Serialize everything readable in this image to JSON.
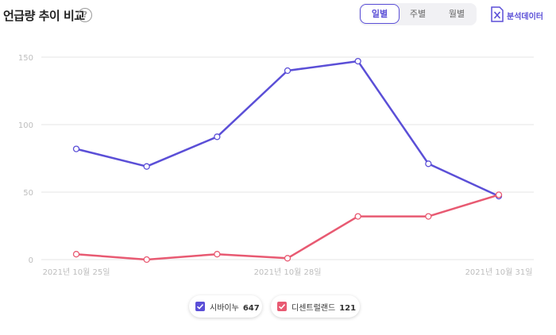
{
  "header": {
    "title": "언급량 추이 비교",
    "help_icon": "question-circle-icon",
    "period_options": [
      "일별",
      "주별",
      "월별"
    ],
    "period_selected": "일별",
    "export_label": "분석데이터",
    "export_icon": "excel-file-icon"
  },
  "colors": {
    "accent": "#5b4fd7",
    "series_1": "#5b4fd7",
    "series_2": "#e85a72",
    "grid": "#e6e6e6"
  },
  "chart_data": {
    "type": "line",
    "title": "",
    "xlabel": "",
    "ylabel": "",
    "x": [
      "2021-10-25",
      "2021-10-26",
      "2021-10-27",
      "2021-10-28",
      "2021-10-29",
      "2021-10-30",
      "2021-10-31"
    ],
    "x_tick_labels": [
      {
        "index": 0,
        "label": "2021년 10월 25일"
      },
      {
        "index": 3,
        "label": "2021년 10월 28일"
      },
      {
        "index": 6,
        "label": "2021년 10월 31일"
      }
    ],
    "ylim": [
      0,
      150
    ],
    "y_ticks": [
      0,
      50,
      100,
      150
    ],
    "grid": true,
    "legend_position": "bottom-center",
    "series": [
      {
        "name": "시바이누",
        "total": "647",
        "color": "#5b4fd7",
        "values": [
          82,
          69,
          91,
          140,
          147,
          71,
          47
        ]
      },
      {
        "name": "디센트럴랜드",
        "total": "121",
        "color": "#e85a72",
        "values": [
          4,
          0,
          4,
          1,
          32,
          32,
          48
        ]
      }
    ]
  }
}
